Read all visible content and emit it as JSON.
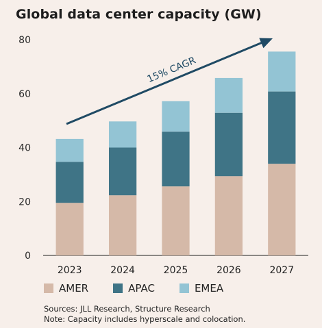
{
  "title": "Global data center capacity (GW)",
  "chart_data": {
    "type": "bar",
    "stacked": true,
    "categories": [
      "2023",
      "2024",
      "2025",
      "2026",
      "2027"
    ],
    "series": [
      {
        "name": "AMER",
        "color": "#d5b9a8",
        "values": [
          19.5,
          22.3,
          25.6,
          29.4,
          34.0
        ]
      },
      {
        "name": "APAC",
        "color": "#3f7486",
        "values": [
          15.2,
          17.7,
          20.3,
          23.5,
          26.8
        ]
      },
      {
        "name": "EMEA",
        "color": "#93c4d4",
        "values": [
          8.5,
          9.7,
          11.3,
          12.9,
          14.8
        ]
      }
    ],
    "ylim": [
      0,
      80
    ],
    "yticks": [
      0,
      20,
      40,
      60,
      80
    ],
    "grid": false,
    "legend_position": "bottom-left",
    "annotation": {
      "text": "15% CAGR",
      "color": "#1f4a64"
    }
  },
  "footnotes": [
    "Sources: JLL Research, Structure Research",
    "Note: Capacity includes hyperscale and colocation."
  ]
}
